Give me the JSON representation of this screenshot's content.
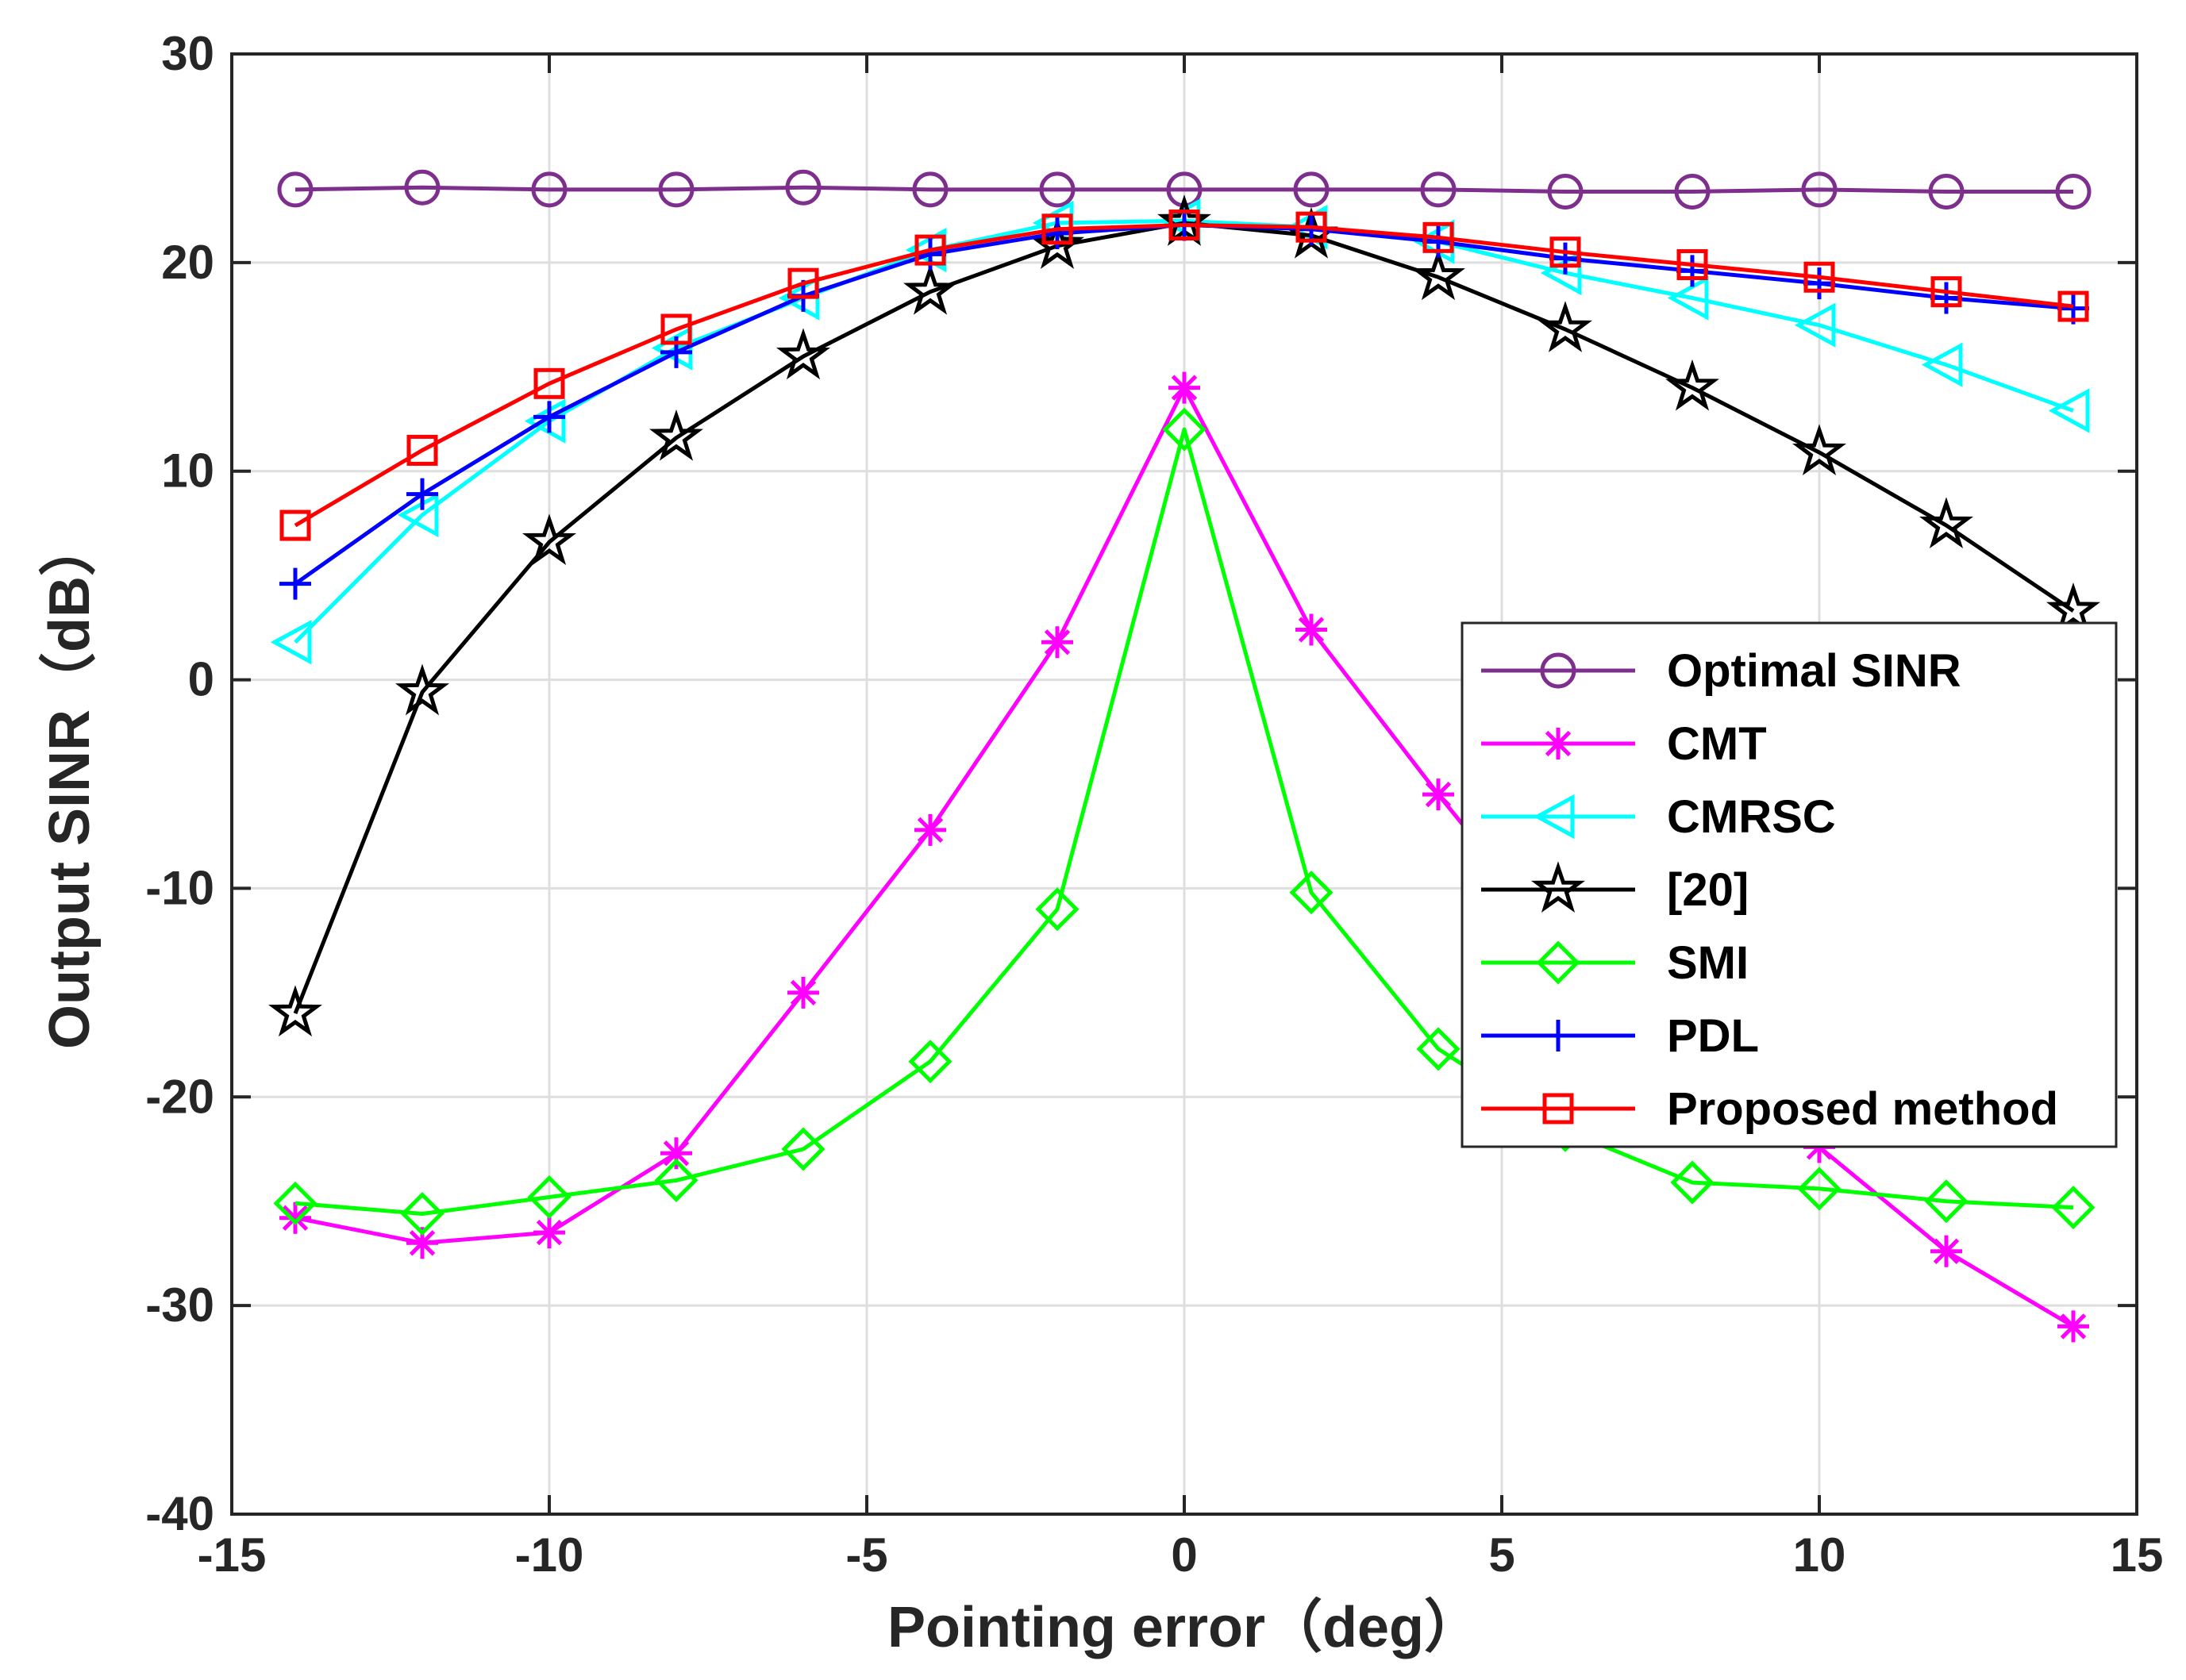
{
  "chart_data": {
    "type": "line",
    "xlabel": "Pointing error（deg）",
    "ylabel": "Output SINR（dB）",
    "xlim": [
      -15,
      15
    ],
    "ylim": [
      -40,
      30
    ],
    "xticks": [
      "-15",
      "-10",
      "-5",
      "0",
      "5",
      "10",
      "15"
    ],
    "yticks": [
      "-40",
      "-30",
      "-20",
      "-10",
      "0",
      "10",
      "20",
      "30"
    ],
    "grid": true,
    "legend_position": "right-middle",
    "x": [
      -14,
      -12,
      -10,
      -8,
      -6,
      -4,
      -2,
      0,
      2,
      4,
      6,
      8,
      10,
      12,
      14
    ],
    "series": [
      {
        "name": "Optimal SINR",
        "color": "#7e2f8e",
        "marker": "circle",
        "values": [
          23.5,
          23.6,
          23.5,
          23.5,
          23.6,
          23.5,
          23.5,
          23.5,
          23.5,
          23.5,
          23.4,
          23.4,
          23.5,
          23.4,
          23.4
        ]
      },
      {
        "name": "CMT",
        "color": "#ff00ff",
        "marker": "asterisk",
        "values": [
          -25.8,
          -27.0,
          -26.5,
          -22.7,
          -15.0,
          -7.2,
          1.8,
          14.0,
          2.4,
          -5.5,
          -13.0,
          -19.0,
          -22.4,
          -27.4,
          -31.0
        ]
      },
      {
        "name": "CMRSC",
        "color": "#00ffff",
        "marker": "triangle-left",
        "values": [
          1.8,
          7.9,
          12.4,
          15.9,
          18.3,
          20.6,
          21.9,
          22.0,
          21.7,
          21.0,
          19.5,
          18.3,
          17.0,
          15.1,
          12.9
        ]
      },
      {
        "name": "[20]",
        "color": "#000000",
        "marker": "star",
        "values": [
          -16.0,
          -0.6,
          6.6,
          11.6,
          15.5,
          18.6,
          20.8,
          21.9,
          21.3,
          19.3,
          16.8,
          14.0,
          10.9,
          7.4,
          3.3
        ]
      },
      {
        "name": "SMI",
        "color": "#00ff00",
        "marker": "diamond",
        "values": [
          -25.1,
          -25.6,
          -24.8,
          -24.0,
          -22.5,
          -18.3,
          -11.0,
          12.0,
          -10.2,
          -17.7,
          -21.6,
          -24.1,
          -24.4,
          -25.0,
          -25.3
        ]
      },
      {
        "name": "PDL",
        "color": "#0000ff",
        "marker": "plus",
        "values": [
          4.6,
          8.9,
          12.6,
          15.7,
          18.4,
          20.4,
          21.4,
          21.8,
          21.6,
          21.0,
          20.2,
          19.6,
          19.0,
          18.3,
          17.8
        ]
      },
      {
        "name": "Proposed method",
        "color": "#ff0000",
        "marker": "square",
        "values": [
          7.4,
          11.0,
          14.2,
          16.8,
          19.0,
          20.6,
          21.6,
          21.8,
          21.7,
          21.2,
          20.5,
          19.9,
          19.3,
          18.6,
          17.9
        ]
      }
    ]
  }
}
